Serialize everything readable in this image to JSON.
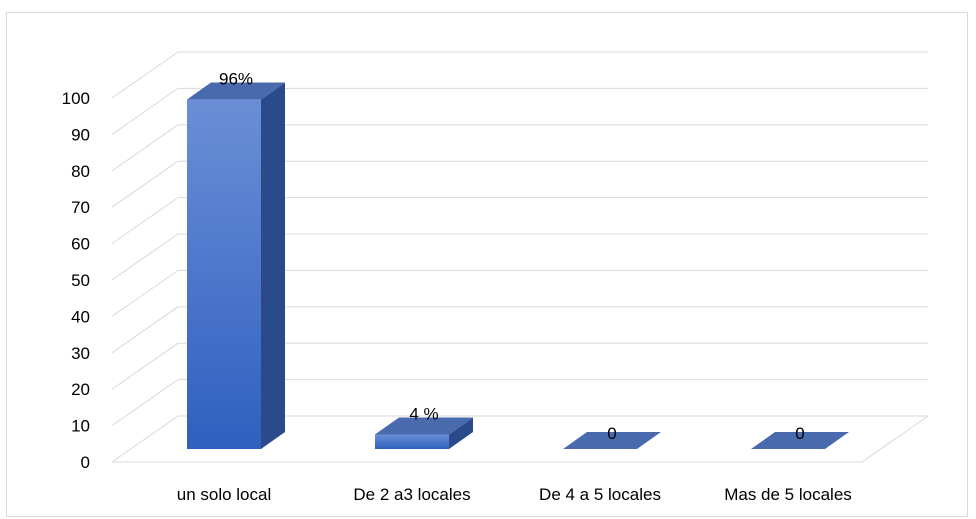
{
  "chart_data": {
    "type": "bar",
    "style": "3d-column",
    "categories": [
      "un solo local",
      "De 2 a3 locales",
      "De 4 a 5 locales",
      "Mas de 5 locales"
    ],
    "values": [
      96,
      4,
      0,
      0
    ],
    "data_labels": [
      "96%",
      "4 %",
      "0",
      "0"
    ],
    "ylim": [
      0,
      100
    ],
    "yticks": [
      "0",
      "10",
      "20",
      "30",
      "40",
      "50",
      "60",
      "70",
      "80",
      "90",
      "100"
    ],
    "grid": true,
    "legend": "none",
    "colors": {
      "bar_front_top": "#6a8fd6",
      "bar_front_bottom": "#2f5fc0",
      "bar_side": "#2a4a8c",
      "bar_top": "#4a6aae",
      "grid": "#d9d9d9",
      "frame": "#d9d9d9"
    }
  }
}
